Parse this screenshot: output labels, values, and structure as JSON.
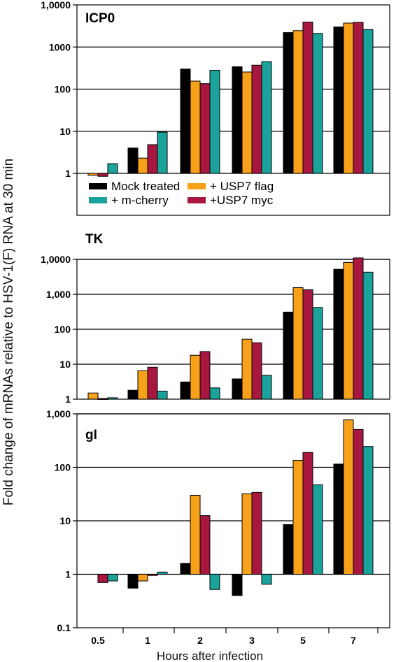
{
  "y_axis_label": "Fold change of mRNAs relative to HSV-1(F) RNA at 30 min",
  "x_axis_label": "Hours after infection",
  "colors": {
    "Mock treated": "#000000",
    "+ USP7 flag": "#f7a11a",
    "+ m-cherry": "#1aa39b",
    "+USP7 myc": "#a8173f"
  },
  "chart_data": [
    {
      "type": "bar",
      "title": "ICP0",
      "scale": "log",
      "ylim": [
        1,
        10000
      ],
      "yticks": [
        "1",
        "10",
        "100",
        "1000",
        "1,0000"
      ],
      "categories": [
        "0.5",
        "1",
        "2",
        "3",
        "5",
        "7"
      ],
      "legend_position": "bottom",
      "series": [
        {
          "name": "Mock treated",
          "values": [
            null,
            4,
            300,
            340,
            2200,
            3000
          ]
        },
        {
          "name": "+ USP7 flag",
          "values": [
            0.9,
            2.3,
            155,
            255,
            2450,
            3700
          ]
        },
        {
          "name": "+USP7 myc",
          "values": [
            0.85,
            4.8,
            135,
            370,
            3900,
            3850
          ]
        },
        {
          "name": "+ m-cherry",
          "values": [
            1.7,
            9.5,
            280,
            450,
            2100,
            2600
          ]
        }
      ]
    },
    {
      "type": "bar",
      "title": "TK",
      "scale": "log",
      "ylim": [
        1,
        10000
      ],
      "yticks": [
        "1",
        "10",
        "100",
        "1,000",
        "1,0000"
      ],
      "categories": [
        "0.5",
        "1",
        "2",
        "3",
        "5",
        "7"
      ],
      "series": [
        {
          "name": "Mock treated",
          "values": [
            null,
            1.8,
            3.1,
            3.8,
            310,
            5200
          ]
        },
        {
          "name": "+ USP7 flag",
          "values": [
            1.5,
            6.5,
            18,
            52,
            1550,
            8200
          ]
        },
        {
          "name": "+USP7 myc",
          "values": [
            1.05,
            8.2,
            23,
            41,
            1350,
            11000
          ]
        },
        {
          "name": "+ m-cherry",
          "values": [
            1.1,
            1.7,
            2.1,
            4.8,
            420,
            4300
          ]
        }
      ]
    },
    {
      "type": "bar",
      "title": "gI",
      "scale": "log",
      "ylim": [
        0.1,
        1000
      ],
      "yticks": [
        "0.1",
        "1",
        "10",
        "100",
        "1,000"
      ],
      "categories": [
        "0.5",
        "1",
        "2",
        "3",
        "5",
        "7"
      ],
      "series": [
        {
          "name": "Mock treated",
          "values": [
            null,
            0.55,
            1.6,
            0.4,
            8.5,
            115
          ]
        },
        {
          "name": "+ USP7 flag",
          "values": [
            null,
            0.75,
            30,
            32,
            135,
            770
          ]
        },
        {
          "name": "+USP7 myc",
          "values": [
            0.7,
            0.95,
            12.5,
            34,
            190,
            510
          ]
        },
        {
          "name": "+ m-cherry",
          "values": [
            0.75,
            1.1,
            0.52,
            0.65,
            47,
            245
          ]
        }
      ]
    }
  ],
  "legend": {
    "items": [
      {
        "label": "Mock treated",
        "color": "#000000"
      },
      {
        "label": "+ USP7 flag",
        "color": "#f7a11a"
      },
      {
        "label": "+ m-cherry",
        "color": "#1aa39b"
      },
      {
        "label": "+USP7 myc",
        "color": "#a8173f"
      }
    ]
  }
}
